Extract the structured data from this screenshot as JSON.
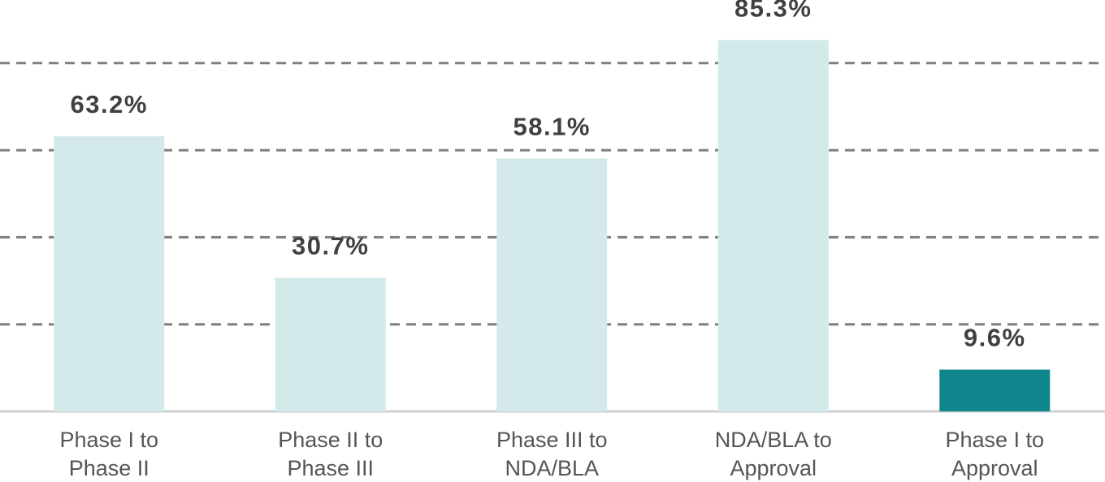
{
  "chart_data": {
    "type": "bar",
    "categories": [
      "Phase I to Phase II",
      "Phase II to Phase III",
      "Phase III to NDA/BLA",
      "NDA/BLA to Approval",
      "Phase I to Approval"
    ],
    "values": [
      63.2,
      30.7,
      58.1,
      85.3,
      9.6
    ],
    "value_labels": [
      "63.2%",
      "30.7%",
      "58.1%",
      "85.3%",
      "9.6%"
    ],
    "colors": [
      "#d4e9ea",
      "#d4e9ea",
      "#d4e9ea",
      "#d4e9ea",
      "#0e868c"
    ],
    "ylim": [
      0,
      94.5
    ],
    "yticks": [
      20,
      40,
      60,
      80
    ],
    "grid": true
  }
}
